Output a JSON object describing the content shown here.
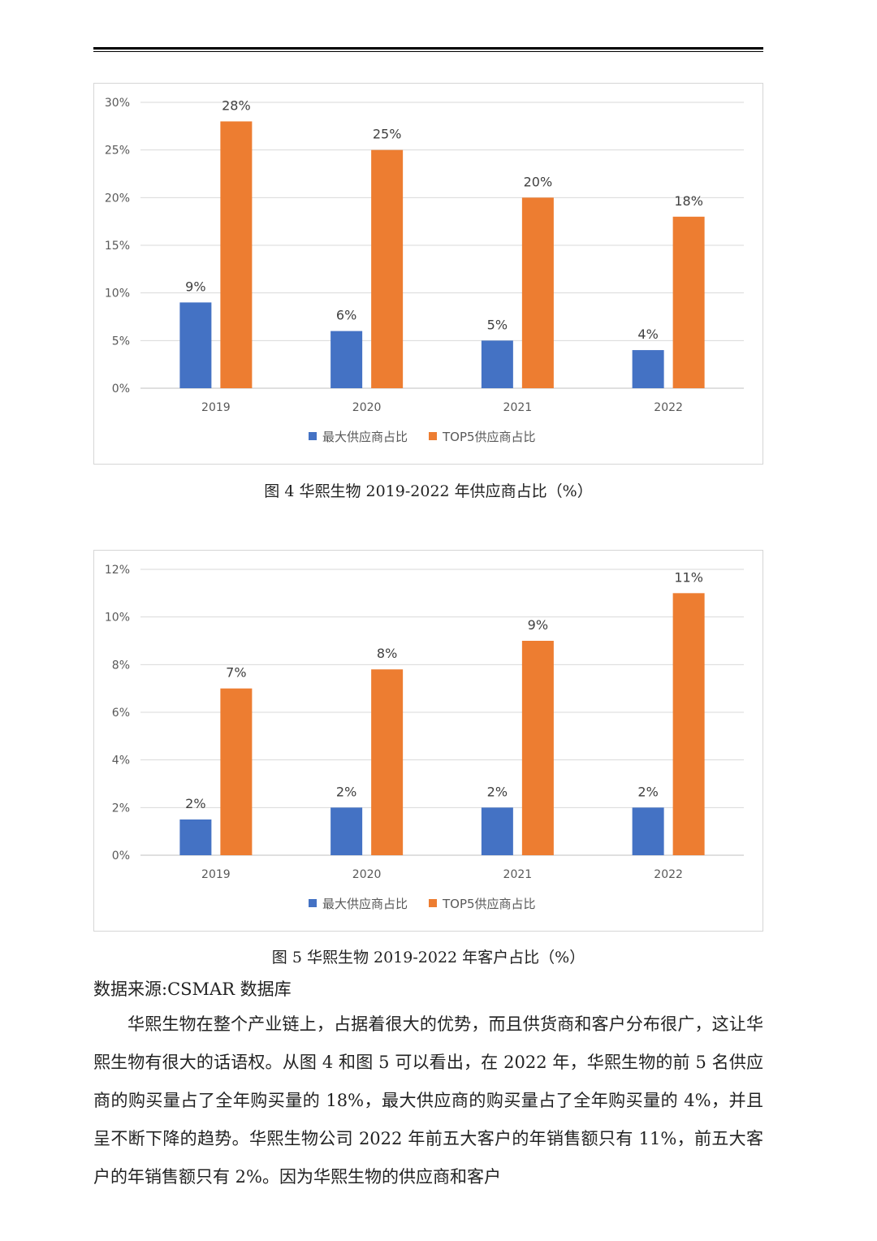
{
  "figure4": {
    "caption": "图 4  华熙生物 2019-2022 年供应商占比（%）",
    "chart_data": {
      "type": "bar",
      "categories": [
        "2019",
        "2020",
        "2021",
        "2022"
      ],
      "series": [
        {
          "name": "最大供应商占比",
          "values": [
            9,
            6,
            5,
            4
          ],
          "labels": [
            "9%",
            "6%",
            "5%",
            "4%"
          ],
          "color": "#4472C4"
        },
        {
          "name": "TOP5供应商占比",
          "values": [
            28,
            25,
            20,
            18
          ],
          "labels": [
            "28%",
            "25%",
            "20%",
            "18%"
          ],
          "color": "#ED7D31"
        }
      ],
      "yticks": [
        0,
        5,
        10,
        15,
        20,
        25,
        30
      ],
      "yticklabels": [
        "0%",
        "5%",
        "10%",
        "15%",
        "20%",
        "25%",
        "30%"
      ],
      "ylim": [
        0,
        30
      ],
      "grid": true,
      "legend_position": "bottom"
    }
  },
  "figure5": {
    "caption": "图 5  华熙生物 2019-2022 年客户占比（%）",
    "chart_data": {
      "type": "bar",
      "categories": [
        "2019",
        "2020",
        "2021",
        "2022"
      ],
      "series": [
        {
          "name": "最大供应商占比",
          "values": [
            1.5,
            2,
            2,
            2
          ],
          "labels": [
            "2%",
            "2%",
            "2%",
            "2%"
          ],
          "color": "#4472C4"
        },
        {
          "name": "TOP5供应商占比",
          "values": [
            7,
            7.8,
            9,
            11
          ],
          "labels": [
            "7%",
            "8%",
            "9%",
            "11%"
          ],
          "color": "#ED7D31"
        }
      ],
      "yticks": [
        0,
        2,
        4,
        6,
        8,
        10,
        12
      ],
      "yticklabels": [
        "0%",
        "2%",
        "4%",
        "6%",
        "8%",
        "10%",
        "12%"
      ],
      "ylim": [
        0,
        12
      ],
      "grid": true,
      "legend_position": "bottom"
    }
  },
  "source": "数据来源:CSMAR 数据库",
  "paragraph": "华熙生物在整个产业链上，占据着很大的优势，而且供货商和客户分布很广，这让华熙生物有很大的话语权。从图 4 和图 5 可以看出，在 2022 年，华熙生物的前 5 名供应商的购买量占了全年购买量的 18%，最大供应商的购买量占了全年购买量的 4%，并且呈不断下降的趋势。华熙生物公司 2022 年前五大客户的年销售额只有 11%，前五大客户的年销售额只有 2%。因为华熙生物的供应商和客户"
}
